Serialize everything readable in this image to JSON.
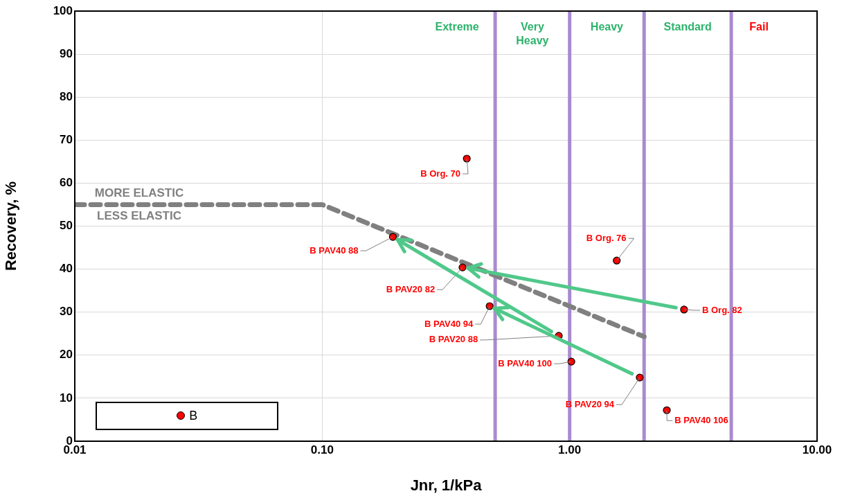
{
  "chart_data": {
    "type": "scatter",
    "xlabel": "Jnr, 1/kPa",
    "ylabel": "Recovery, %",
    "log": "x",
    "grid": true,
    "legend": "bottom left",
    "marker": "circle",
    "xlim": [
      0.01,
      10
    ],
    "xticks": [
      {
        "value": 0.01,
        "label": "0.01"
      },
      {
        "value": 0.1,
        "label": "0.10"
      },
      {
        "value": 1,
        "label": "1.00"
      },
      {
        "value": 10,
        "label": "10.00"
      }
    ],
    "ylim": [
      0,
      100
    ],
    "yticks": [
      0,
      10,
      20,
      30,
      40,
      50,
      60,
      70,
      80,
      90,
      100
    ],
    "series": [
      {
        "name": "B",
        "type": "scatter",
        "color": "#ff0000",
        "x": [
          0.384,
          1.55,
          0.193,
          0.369,
          0.475,
          0.904,
          1.016,
          1.92,
          2.9,
          2.47
        ],
        "values": [
          65.7,
          42.0,
          47.5,
          40.4,
          31.4,
          24.5,
          18.5,
          14.8,
          30.6,
          7.2
        ]
      },
      {
        "type": "line",
        "color": "#808080",
        "line_style": "dashed",
        "marker": "none",
        "x": [
          0.01,
          0.1,
          2.0
        ],
        "values": [
          55,
          55,
          24.3
        ]
      }
    ],
    "ref_lines": [
      {
        "axis": "x",
        "value": 0.5,
        "color": "#a98bd0"
      },
      {
        "axis": "x",
        "value": 1.0,
        "color": "#a98bd0"
      },
      {
        "axis": "x",
        "value": 2.0,
        "color": "#a98bd0"
      },
      {
        "axis": "x",
        "value": 4.5,
        "color": "#a98bd0"
      }
    ],
    "annotations": [
      {
        "text": "B Org. 70",
        "x": 0.384,
        "y": 65.7
      },
      {
        "text": "B Org. 76",
        "x": 1.55,
        "y": 42.0
      },
      {
        "text": "B PAV40 88",
        "x": 0.193,
        "y": 47.5
      },
      {
        "text": "B PAV20 82",
        "x": 0.369,
        "y": 40.4
      },
      {
        "text": "B PAV40 94",
        "x": 0.475,
        "y": 31.4
      },
      {
        "text": "B PAV20 88",
        "x": 0.904,
        "y": 24.5
      },
      {
        "text": "B PAV40 100",
        "x": 1.016,
        "y": 18.5
      },
      {
        "text": "B PAV20 94",
        "x": 1.92,
        "y": 14.8
      },
      {
        "text": "B Org. 82",
        "x": 2.9,
        "y": 30.6
      },
      {
        "text": "B PAV40 106",
        "x": 2.47,
        "y": 7.2
      },
      "Extreme",
      "Very Heavy",
      "Heavy",
      "Standard",
      "Fail",
      "MORE ELASTIC",
      "LESS ELASTIC"
    ]
  }
}
